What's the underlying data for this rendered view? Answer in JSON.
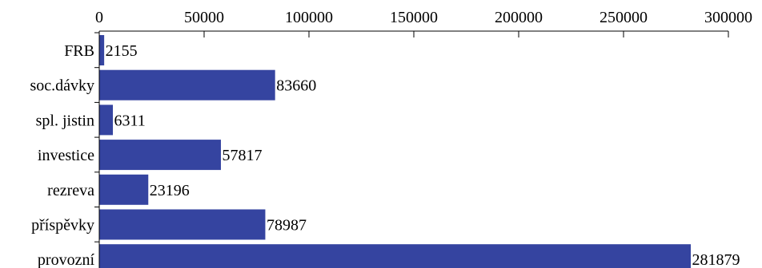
{
  "chart_data": {
    "type": "bar",
    "orientation": "horizontal",
    "categories": [
      "FRB",
      "soc.dávky",
      "spl. jistin",
      "investice",
      "rezreva",
      "příspěvky",
      "provozní"
    ],
    "values": [
      2155,
      83660,
      6311,
      57817,
      23196,
      78987,
      281879
    ],
    "value_labels": [
      "2155",
      "83660",
      "6311",
      "57817",
      "23196",
      "78987",
      "281879"
    ],
    "x_ticks": [
      0,
      50000,
      100000,
      150000,
      200000,
      250000,
      300000
    ],
    "x_tick_labels": [
      "0",
      "50000",
      "100000",
      "150000",
      "200000",
      "250000",
      "300000"
    ],
    "xlim": [
      0,
      300000
    ],
    "x_axis_position": "top",
    "bar_color": "#3544a0",
    "grid": false,
    "title": "",
    "xlabel": "",
    "ylabel": ""
  }
}
